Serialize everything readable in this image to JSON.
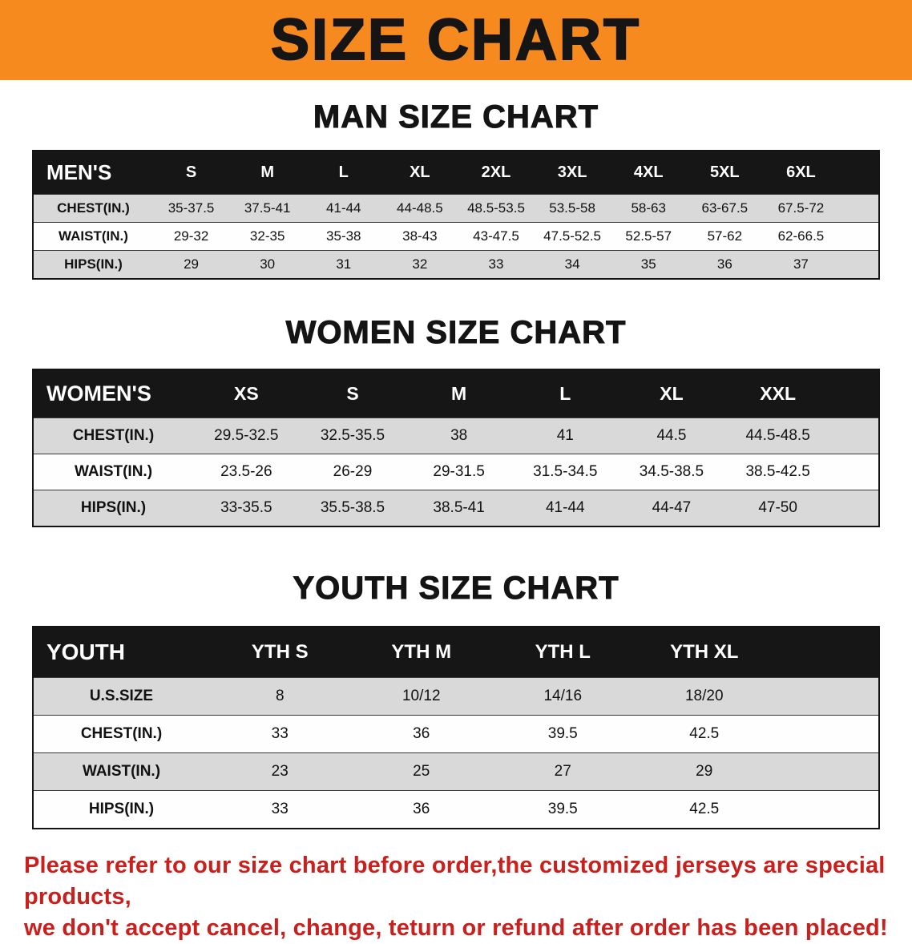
{
  "banner": {
    "title": "SIZE CHART",
    "bg_color": "#f68a1e",
    "text_color": "#151515"
  },
  "sections": {
    "men": {
      "heading": "MAN SIZE CHART"
    },
    "women": {
      "heading": "WOMEN SIZE CHART"
    },
    "youth": {
      "heading": "YOUTH SIZE CHART"
    }
  },
  "tables": {
    "men": {
      "header": [
        "MEN'S",
        "S",
        "M",
        "L",
        "XL",
        "2XL",
        "3XL",
        "4XL",
        "5XL",
        "6XL"
      ],
      "rows": [
        {
          "label": "CHEST(IN.)",
          "values": [
            "35-37.5",
            "37.5-41",
            "41-44",
            "44-48.5",
            "48.5-53.5",
            "53.5-58",
            "58-63",
            "63-67.5",
            "67.5-72"
          ]
        },
        {
          "label": "WAIST(IN.)",
          "values": [
            "29-32",
            "32-35",
            "35-38",
            "38-43",
            "43-47.5",
            "47.5-52.5",
            "52.5-57",
            "57-62",
            "62-66.5"
          ]
        },
        {
          "label": "HIPS(IN.)",
          "values": [
            "29",
            "30",
            "31",
            "32",
            "33",
            "34",
            "35",
            "36",
            "37"
          ]
        }
      ]
    },
    "women": {
      "header": [
        "WOMEN'S",
        "XS",
        "S",
        "M",
        "L",
        "XL",
        "XXL"
      ],
      "rows": [
        {
          "label": "CHEST(IN.)",
          "values": [
            "29.5-32.5",
            "32.5-35.5",
            "38",
            "41",
            "44.5",
            "44.5-48.5"
          ]
        },
        {
          "label": "WAIST(IN.)",
          "values": [
            "23.5-26",
            "26-29",
            "29-31.5",
            "31.5-34.5",
            "34.5-38.5",
            "38.5-42.5"
          ]
        },
        {
          "label": "HIPS(IN.)",
          "values": [
            "33-35.5",
            "35.5-38.5",
            "38.5-41",
            "41-44",
            "44-47",
            "47-50"
          ]
        }
      ]
    },
    "youth": {
      "header": [
        "YOUTH",
        "YTH S",
        "YTH M",
        "YTH L",
        "YTH XL"
      ],
      "rows": [
        {
          "label": "U.S.SIZE",
          "values": [
            "8",
            "10/12",
            "14/16",
            "18/20"
          ]
        },
        {
          "label": "CHEST(IN.)",
          "values": [
            "33",
            "36",
            "39.5",
            "42.5"
          ]
        },
        {
          "label": "WAIST(IN.)",
          "values": [
            "23",
            "25",
            "27",
            "29"
          ]
        },
        {
          "label": "HIPS(IN.)",
          "values": [
            "33",
            "36",
            "39.5",
            "42.5"
          ]
        }
      ]
    }
  },
  "note": {
    "line1": "Please refer to our size chart before order,the customized jerseys are special products,",
    "line2": "we don't accept cancel, change, teturn or refund after order has been placed!",
    "color": "#c9201d"
  }
}
